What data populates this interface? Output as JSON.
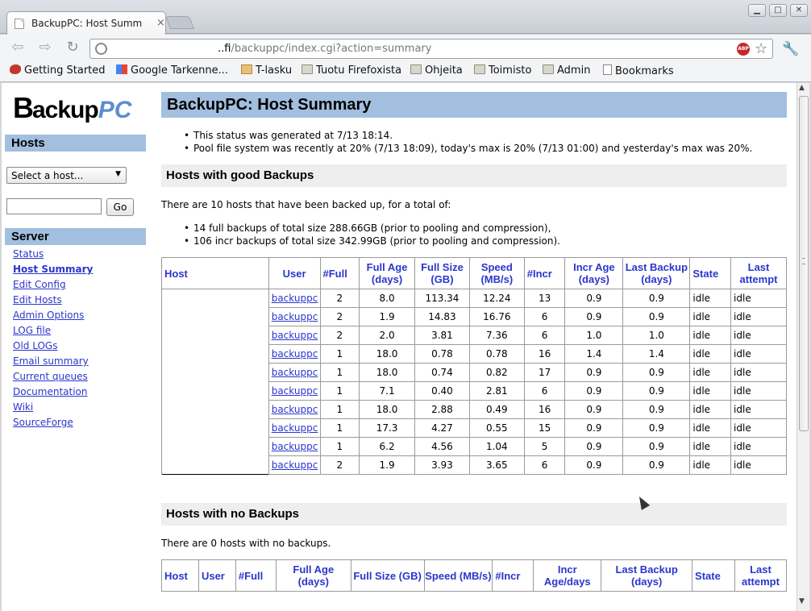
{
  "browser": {
    "tab_title": "BackupPC: Host Summ",
    "tab_close": "×",
    "url_domain_suffix": "..fi",
    "url_path": "/backuppc/index.cgi?action=summary",
    "abp_label": "ABP",
    "bookmarks": [
      "Getting Started",
      "Google Tarkenne...",
      "T-lasku",
      "Tuotu Firefoxista",
      "Ohjeita",
      "Toimisto",
      "Admin",
      "Bookmarks"
    ]
  },
  "sidebar": {
    "logo_b": "B",
    "logo_ackup": "ackup",
    "logo_pc": "PC",
    "hosts_heading": "Hosts",
    "select_placeholder": "Select a host...",
    "go_label": "Go",
    "server_heading": "Server",
    "links": [
      "Status",
      "Host Summary",
      "Edit Config",
      "Edit Hosts",
      "Admin Options",
      "LOG file",
      "Old LOGs",
      "Email summary",
      "Current queues",
      "Documentation",
      "Wiki",
      "SourceForge"
    ]
  },
  "main": {
    "title": "BackupPC: Host Summary",
    "status_bullets": [
      "This status was generated at 7/13 18:14.",
      "Pool file system was recently at 20% (7/13 18:09), today's max is 20% (7/13 01:00) and yesterday's max was 20%."
    ],
    "good_heading": "Hosts with good Backups",
    "good_summary": "There are 10 hosts that have been backed up, for a total of:",
    "good_bullets": [
      "14 full backups of total size 288.66GB (prior to pooling and compression),",
      "106 incr backups of total size 342.99GB (prior to pooling and compression)."
    ],
    "good_table": {
      "headers": [
        "Host",
        "User",
        "#Full",
        "Full Age (days)",
        "Full Size (GB)",
        "Speed (MB/s)",
        "#Incr",
        "Incr Age (days)",
        "Last Backup (days)",
        "State",
        "Last attempt"
      ],
      "rows": [
        [
          "",
          "backuppc",
          "2",
          "8.0",
          "113.34",
          "12.24",
          "13",
          "0.9",
          "0.9",
          "idle",
          "idle"
        ],
        [
          "",
          "backuppc",
          "2",
          "1.9",
          "14.83",
          "16.76",
          "6",
          "0.9",
          "0.9",
          "idle",
          "idle"
        ],
        [
          "",
          "backuppc",
          "2",
          "2.0",
          "3.81",
          "7.36",
          "6",
          "1.0",
          "1.0",
          "idle",
          "idle"
        ],
        [
          "",
          "backuppc",
          "1",
          "18.0",
          "0.78",
          "0.78",
          "16",
          "1.4",
          "1.4",
          "idle",
          "idle"
        ],
        [
          "",
          "backuppc",
          "1",
          "18.0",
          "0.74",
          "0.82",
          "17",
          "0.9",
          "0.9",
          "idle",
          "idle"
        ],
        [
          "",
          "backuppc",
          "1",
          "7.1",
          "0.40",
          "2.81",
          "6",
          "0.9",
          "0.9",
          "idle",
          "idle"
        ],
        [
          "",
          "backuppc",
          "1",
          "18.0",
          "2.88",
          "0.49",
          "16",
          "0.9",
          "0.9",
          "idle",
          "idle"
        ],
        [
          "",
          "backuppc",
          "1",
          "17.3",
          "4.27",
          "0.55",
          "15",
          "0.9",
          "0.9",
          "idle",
          "idle"
        ],
        [
          "",
          "backuppc",
          "1",
          "6.2",
          "4.56",
          "1.04",
          "5",
          "0.9",
          "0.9",
          "idle",
          "idle"
        ],
        [
          "",
          "backuppc",
          "2",
          "1.9",
          "3.93",
          "3.65",
          "6",
          "0.9",
          "0.9",
          "idle",
          "idle"
        ]
      ]
    },
    "none_heading": "Hosts with no Backups",
    "none_summary": "There are 0 hosts with no backups.",
    "none_table": {
      "headers": [
        "Host",
        "User",
        "#Full",
        "Full Age (days)",
        "Full Size (GB)",
        "Speed (MB/s)",
        "#Incr",
        "Incr Age/days",
        "Last Backup (days)",
        "State",
        "Last attempt"
      ]
    }
  }
}
